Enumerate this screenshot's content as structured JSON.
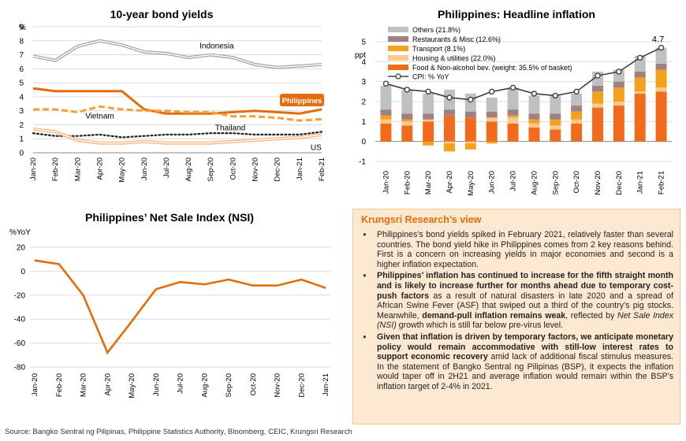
{
  "chart_data": [
    {
      "type": "line",
      "title": "10-year bond yields",
      "ylabel": "%",
      "ylim": [
        0,
        9
      ],
      "yticks": [
        0,
        1,
        2,
        3,
        4,
        5,
        6,
        7,
        8,
        9
      ],
      "categories": [
        "Jan-20",
        "Feb-20",
        "Mar-20",
        "Apr-20",
        "May-20",
        "Jun-20",
        "Jul-20",
        "Aug-20",
        "Sep-20",
        "Oct-20",
        "Nov-20",
        "Dec-20",
        "Jan-21",
        "Feb-21"
      ],
      "series": [
        {
          "name": "Indonesia",
          "color": "#a6a6a6",
          "style": "double",
          "values": [
            6.9,
            6.6,
            7.6,
            8.0,
            7.7,
            7.2,
            7.1,
            6.8,
            7.0,
            6.8,
            6.3,
            6.1,
            6.2,
            6.3
          ]
        },
        {
          "name": "Philippines",
          "color": "#e46c0a",
          "style": "solid",
          "values": [
            4.6,
            4.4,
            4.4,
            4.4,
            4.4,
            3.1,
            2.8,
            2.8,
            2.8,
            2.9,
            3.0,
            2.9,
            2.8,
            3.1
          ]
        },
        {
          "name": "Vietnam",
          "color": "#f4a035",
          "style": "dashed",
          "values": [
            3.1,
            3.1,
            2.9,
            3.3,
            3.1,
            3.0,
            3.0,
            2.9,
            2.9,
            2.6,
            2.6,
            2.5,
            2.3,
            2.4
          ]
        },
        {
          "name": "Thailand",
          "color": "#222222",
          "style": "dotted",
          "values": [
            1.4,
            1.2,
            1.2,
            1.3,
            1.1,
            1.2,
            1.3,
            1.3,
            1.4,
            1.4,
            1.3,
            1.3,
            1.3,
            1.5
          ]
        },
        {
          "name": "US",
          "color": "#f6b27a",
          "style": "double",
          "values": [
            1.7,
            1.5,
            0.9,
            0.7,
            0.7,
            0.8,
            0.7,
            0.7,
            0.7,
            0.8,
            0.9,
            1.0,
            1.1,
            1.3
          ]
        }
      ]
    },
    {
      "type": "bar",
      "stacked": true,
      "title": "Philippines: Headline inflation",
      "ylabel": "ppt",
      "ylim": [
        -1,
        5
      ],
      "yticks": [
        -1,
        0,
        1,
        2,
        3,
        4,
        5
      ],
      "categories": [
        "Jan-20",
        "Feb-20",
        "Mar-20",
        "Apr-20",
        "May-20",
        "Jun-20",
        "Jul-20",
        "Aug-20",
        "Sep-20",
        "Oct-20",
        "Nov-20",
        "Dec-20",
        "Jan-21",
        "Feb-21"
      ],
      "annotation": "4.7",
      "series": [
        {
          "name": "Food & Non-alcohol bev. (weight: 35.5% of basket)",
          "color": "#f26a1b",
          "values": [
            0.9,
            0.8,
            1.0,
            1.3,
            1.2,
            1.0,
            0.9,
            0.7,
            0.6,
            0.9,
            1.7,
            1.8,
            2.4,
            2.5
          ]
        },
        {
          "name": "Housing & utilities (22.0%)",
          "color": "#fbc98e",
          "values": [
            0.2,
            0.2,
            0.1,
            -0.1,
            -0.1,
            0.2,
            0.3,
            0.2,
            0.2,
            0.2,
            0.2,
            0.2,
            0.1,
            0.2
          ]
        },
        {
          "name": "Transport (8.1%)",
          "color": "#f4a21d",
          "values": [
            0.2,
            0.1,
            -0.2,
            -0.4,
            -0.3,
            -0.1,
            0.1,
            0.2,
            0.3,
            0.4,
            0.6,
            0.7,
            0.7,
            0.9
          ]
        },
        {
          "name": "Restaurants & Misc (12.6%)",
          "color": "#a08080",
          "values": [
            0.3,
            0.3,
            0.3,
            0.3,
            0.3,
            0.3,
            0.3,
            0.3,
            0.3,
            0.3,
            0.3,
            0.3,
            0.3,
            0.3
          ]
        },
        {
          "name": "Others (21.8%)",
          "color": "#c0c0c0",
          "values": [
            1.2,
            1.2,
            1.0,
            1.0,
            0.9,
            0.7,
            1.1,
            0.9,
            0.9,
            0.6,
            0.7,
            0.6,
            0.8,
            0.8
          ]
        }
      ],
      "line": {
        "name": "CPI: % YoY",
        "color": "#404040",
        "values": [
          2.9,
          2.6,
          2.5,
          2.2,
          2.1,
          2.5,
          2.7,
          2.4,
          2.3,
          2.5,
          3.3,
          3.5,
          4.2,
          4.7
        ]
      }
    },
    {
      "type": "line",
      "title": "Philippines’ Net Sale Index (NSI)",
      "ylabel": "%YoY",
      "ylim": [
        -80,
        20
      ],
      "yticks": [
        -80,
        -60,
        -40,
        -20,
        0,
        20
      ],
      "categories": [
        "Jan-20",
        "Feb-20",
        "Mar-20",
        "Apr-20",
        "May-20",
        "Jun-20",
        "Jul-20",
        "Aug-20",
        "Sep-20",
        "Oct-20",
        "Nov-20",
        "Dec-20",
        "Jan-21"
      ],
      "series": [
        {
          "name": "",
          "color": "#e46c0a",
          "values": [
            9,
            6,
            -20,
            -68,
            -42,
            -15,
            -9,
            -11,
            -7,
            -12,
            -12,
            -7,
            -14
          ]
        }
      ]
    }
  ],
  "view": {
    "title": "Krungsri Research’s view",
    "p1": "Philippines’s bond yields spiked in February 2021, relatively faster than several countries. The bond yield hike in Philippines comes from 2 key reasons behind. First is a concern on increasing yields in major economies and second is a higher inflation expectation.",
    "p2_b1": "Philippines’ inflation has continued to increase for the fifth straight month and is likely to increase further for months ahead due to temporary cost-push factors",
    "p2_t1": " as a result of natural disasters in late 2020 and a spread of African Swine Fever (ASF) that swiped out a third of the country’s pig stocks. Meanwhile, ",
    "p2_b2": "demand-pull inflation remains weak",
    "p2_t2": ", reflected by ",
    "p2_i": "Net Sale Index (NSI)",
    "p2_t3": " growth which is still far below pre-virus level.",
    "p3_b": "Given that inflation is driven by temporary factors, we anticipate monetary policy would remain accommodative with still-low interest rates to support economic recovery",
    "p3_t": " amid lack of additional fiscal stimulus measures. In the statement of Bangko Sentral ng Pilipinas (BSP), it expects the inflation would taper off in 2H21 and average inflation would remain within the BSP’s inflation target of 2-4% in 2021."
  },
  "source": "Source: Bangko Sentral ng Pilipinas, Philippine Statistics Authority, Bloomberg, CEIC, Krungsri Research"
}
